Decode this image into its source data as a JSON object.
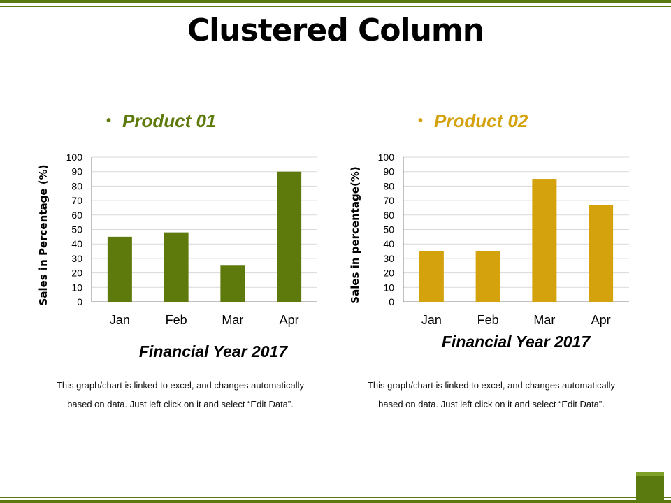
{
  "slide": {
    "title": "Clustered Column"
  },
  "colors": {
    "product01": "#5f7a0c",
    "product02": "#d4a20c",
    "accent": "#5a7a10"
  },
  "chart_data": [
    {
      "type": "bar",
      "legend": "Product 01",
      "legend_placement": "top",
      "categories": [
        "Jan",
        "Feb",
        "Mar",
        "Apr"
      ],
      "values": [
        45,
        48,
        25,
        90
      ],
      "ylim": [
        0,
        100
      ],
      "yticks": [
        "0",
        "10",
        "20",
        "30",
        "40",
        "50",
        "60",
        "70",
        "80",
        "90",
        "100"
      ],
      "ylabel": "Sales in Percentage (%)",
      "xlabel": "Financial Year 2017",
      "grid": true,
      "color": "#5f7a0c",
      "note": "This graph/chart is linked to excel, and changes automatically based on data. Just left click on it and select “Edit Data”."
    },
    {
      "type": "bar",
      "legend": "Product 02",
      "legend_placement": "top",
      "categories": [
        "Jan",
        "Feb",
        "Mar",
        "Apr"
      ],
      "values": [
        35,
        35,
        85,
        67
      ],
      "ylim": [
        0,
        100
      ],
      "yticks": [
        "0",
        "10",
        "20",
        "30",
        "40",
        "50",
        "60",
        "70",
        "80",
        "90",
        "100"
      ],
      "ylabel": "Sales in percentage(%)",
      "xlabel": "Financial Year 2017",
      "grid": true,
      "color": "#d4a20c",
      "note": "This graph/chart is linked to excel, and changes automatically based on data. Just left click on it and select “Edit Data”."
    }
  ]
}
